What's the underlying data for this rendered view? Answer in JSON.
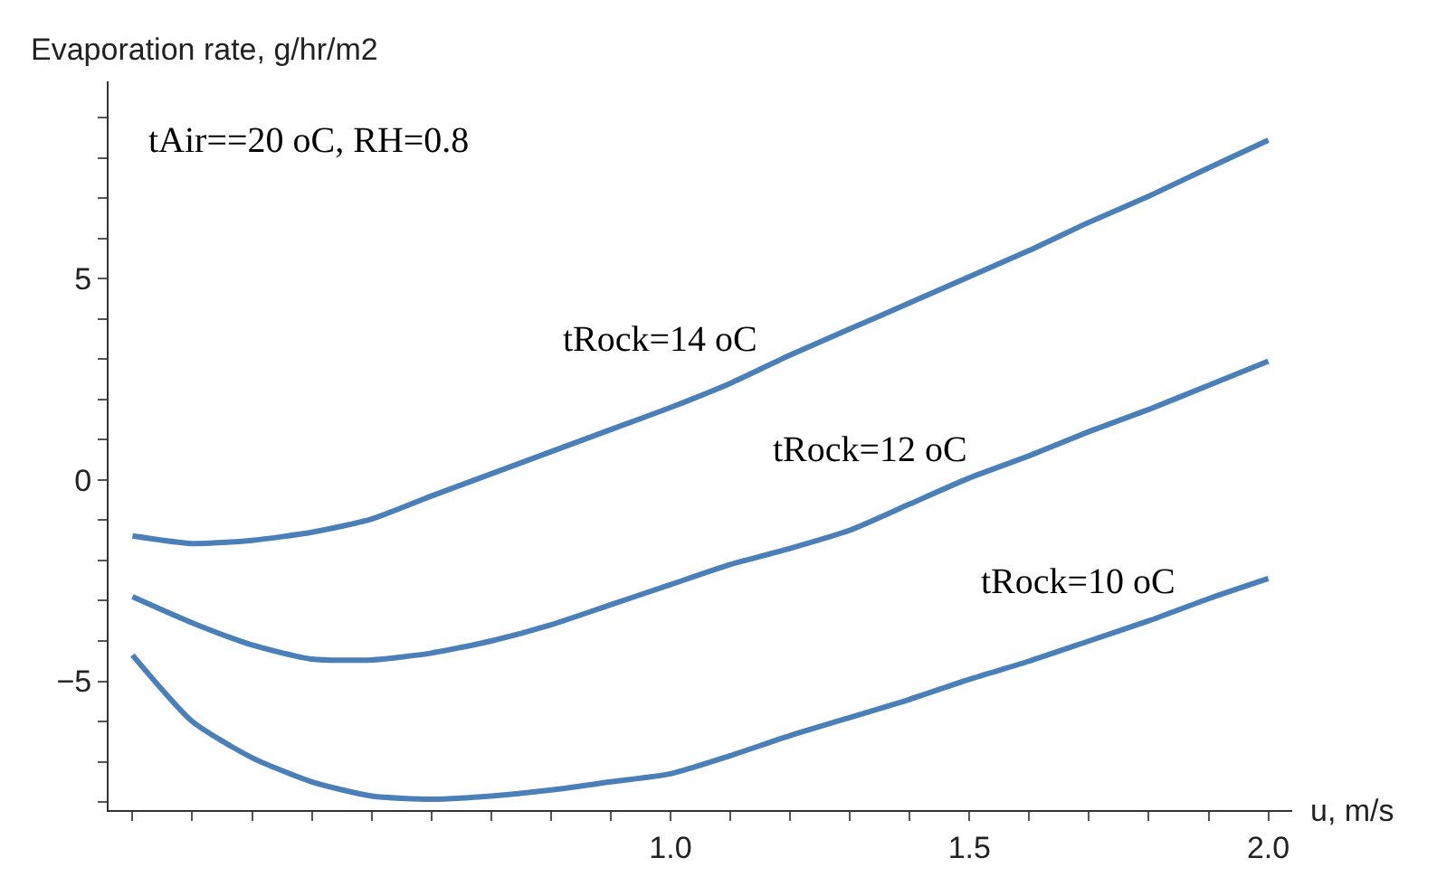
{
  "chart_data": {
    "type": "line",
    "xlabel": "u, m/s",
    "ylabel": "Evaporation rate, g/hr/m2",
    "x": [
      0.1,
      0.2,
      0.3,
      0.4,
      0.5,
      0.6,
      0.7,
      0.8,
      0.9,
      1.0,
      1.1,
      1.2,
      1.3,
      1.4,
      1.5,
      1.6,
      1.7,
      1.8,
      1.9,
      2.0
    ],
    "series": [
      {
        "color": "#4a7fb8",
        "values": [
          -1.39,
          -1.58,
          -1.5,
          -1.3,
          -0.97,
          -0.4,
          0.15,
          0.7,
          1.25,
          1.8,
          2.4,
          3.1,
          3.75,
          4.4,
          5.05,
          5.7,
          6.4,
          7.05,
          7.75,
          8.44
        ]
      },
      {
        "color": "#4a7fb8",
        "values": [
          -2.9,
          -3.55,
          -4.1,
          -4.45,
          -4.47,
          -4.3,
          -4.0,
          -3.6,
          -3.1,
          -2.6,
          -2.1,
          -1.7,
          -1.25,
          -0.6,
          0.05,
          0.6,
          1.2,
          1.75,
          2.35,
          2.95
        ]
      },
      {
        "color": "#4a7fb8",
        "values": [
          -4.35,
          -6.0,
          -6.9,
          -7.5,
          -7.85,
          -7.93,
          -7.85,
          -7.7,
          -7.5,
          -7.3,
          -6.85,
          -6.35,
          -5.9,
          -5.45,
          -4.95,
          -4.5,
          -4.0,
          -3.5,
          -2.95,
          -2.45
        ]
      }
    ],
    "annotations": [
      "tAir==20 oC, RH=0.8",
      {
        "text": "tRock=14 oC",
        "x": 1.15,
        "y": 2.8
      },
      {
        "text": "tRock=12 oC",
        "x": 1.5,
        "y": 0.05
      },
      {
        "text": "tRock=10 oC",
        "x": 1.85,
        "y": -3.2
      }
    ],
    "xlim": [
      0.06,
      2.04
    ],
    "ylim": [
      -8.2,
      9.9
    ],
    "xticks": [
      {
        "value": 0.1,
        "label": null
      },
      {
        "value": 0.2,
        "label": null
      },
      {
        "value": 0.3,
        "label": null
      },
      {
        "value": 0.4,
        "label": null
      },
      {
        "value": 0.5,
        "label": null
      },
      {
        "value": 0.6,
        "label": null
      },
      {
        "value": 0.7,
        "label": null
      },
      {
        "value": 0.8,
        "label": null
      },
      {
        "value": 0.9,
        "label": null
      },
      {
        "value": 1.0,
        "label": "1.0"
      },
      {
        "value": 1.1,
        "label": null
      },
      {
        "value": 1.2,
        "label": null
      },
      {
        "value": 1.3,
        "label": null
      },
      {
        "value": 1.4,
        "label": null
      },
      {
        "value": 1.5,
        "label": "1.5"
      },
      {
        "value": 1.6,
        "label": null
      },
      {
        "value": 1.7,
        "label": null
      },
      {
        "value": 1.8,
        "label": null
      },
      {
        "value": 1.9,
        "label": null
      },
      {
        "value": 2.0,
        "label": "2.0"
      }
    ],
    "yticks": [
      {
        "value": -8,
        "label": null
      },
      {
        "value": -7,
        "label": null
      },
      {
        "value": -6,
        "label": null
      },
      -5,
      {
        "value": -4,
        "label": null
      },
      {
        "value": -3,
        "label": null
      },
      {
        "value": -2,
        "label": null
      },
      {
        "value": -1,
        "label": null
      },
      0,
      {
        "value": 1,
        "label": null
      },
      {
        "value": 2,
        "label": null
      },
      {
        "value": 3,
        "label": null
      },
      {
        "value": 4,
        "label": null
      },
      5,
      {
        "value": 6,
        "label": null
      },
      {
        "value": 7,
        "label": null
      },
      {
        "value": 8,
        "label": null
      },
      {
        "value": 9,
        "label": null
      }
    ],
    "marker": "none",
    "line_style": "solid"
  }
}
